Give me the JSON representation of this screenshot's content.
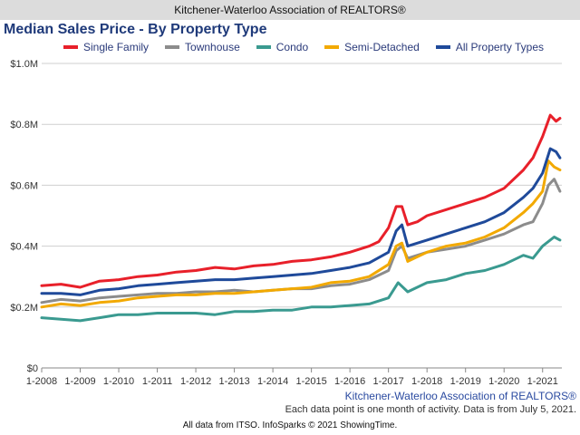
{
  "banner": "Kitchener-Waterloo Association of REALTORS®",
  "footer": {
    "source": "Kitchener-Waterloo Association of REALTORS®",
    "note": "Each data point is one month of activity. Data is from July 5, 2021.",
    "credit": "All data from ITSO. InfoSparks © 2021 ShowingTime."
  },
  "chart_data": {
    "type": "line",
    "title": "Median Sales Price - By Property Type",
    "xlabel": "",
    "ylabel": "",
    "xlim": [
      2008.0,
      2021.5
    ],
    "ylim": [
      0,
      1000000
    ],
    "grid": "horizontal",
    "legend_position": "top",
    "x_ticks": [
      "1-2008",
      "1-2009",
      "1-2010",
      "1-2011",
      "1-2012",
      "1-2013",
      "1-2014",
      "1-2015",
      "1-2016",
      "1-2017",
      "1-2018",
      "1-2019",
      "1-2020",
      "1-2021"
    ],
    "y_ticks": [
      {
        "value": 0,
        "label": "$0"
      },
      {
        "value": 200000,
        "label": "$0.2M"
      },
      {
        "value": 400000,
        "label": "$0.4M"
      },
      {
        "value": 600000,
        "label": "$0.6M"
      },
      {
        "value": 800000,
        "label": "$0.8M"
      },
      {
        "value": 1000000,
        "label": "$1.0M"
      }
    ],
    "series": [
      {
        "name": "Single Family",
        "color": "#e8202a",
        "points": [
          [
            2008.0,
            270000
          ],
          [
            2008.5,
            275000
          ],
          [
            2009.0,
            265000
          ],
          [
            2009.5,
            285000
          ],
          [
            2010.0,
            290000
          ],
          [
            2010.5,
            300000
          ],
          [
            2011.0,
            305000
          ],
          [
            2011.5,
            315000
          ],
          [
            2012.0,
            320000
          ],
          [
            2012.5,
            330000
          ],
          [
            2013.0,
            325000
          ],
          [
            2013.5,
            335000
          ],
          [
            2014.0,
            340000
          ],
          [
            2014.5,
            350000
          ],
          [
            2015.0,
            355000
          ],
          [
            2015.5,
            365000
          ],
          [
            2016.0,
            380000
          ],
          [
            2016.5,
            400000
          ],
          [
            2016.75,
            415000
          ],
          [
            2017.0,
            460000
          ],
          [
            2017.2,
            530000
          ],
          [
            2017.35,
            530000
          ],
          [
            2017.5,
            470000
          ],
          [
            2017.75,
            480000
          ],
          [
            2018.0,
            500000
          ],
          [
            2018.5,
            520000
          ],
          [
            2019.0,
            540000
          ],
          [
            2019.5,
            560000
          ],
          [
            2020.0,
            590000
          ],
          [
            2020.5,
            650000
          ],
          [
            2020.75,
            690000
          ],
          [
            2021.0,
            760000
          ],
          [
            2021.2,
            830000
          ],
          [
            2021.35,
            810000
          ],
          [
            2021.45,
            820000
          ]
        ]
      },
      {
        "name": "Townhouse",
        "color": "#8c8c8c",
        "points": [
          [
            2008.0,
            215000
          ],
          [
            2008.5,
            225000
          ],
          [
            2009.0,
            220000
          ],
          [
            2009.5,
            230000
          ],
          [
            2010.0,
            235000
          ],
          [
            2010.5,
            240000
          ],
          [
            2011.0,
            245000
          ],
          [
            2011.5,
            245000
          ],
          [
            2012.0,
            250000
          ],
          [
            2012.5,
            250000
          ],
          [
            2013.0,
            255000
          ],
          [
            2013.5,
            250000
          ],
          [
            2014.0,
            255000
          ],
          [
            2014.5,
            260000
          ],
          [
            2015.0,
            260000
          ],
          [
            2015.5,
            270000
          ],
          [
            2016.0,
            275000
          ],
          [
            2016.5,
            290000
          ],
          [
            2017.0,
            320000
          ],
          [
            2017.2,
            385000
          ],
          [
            2017.35,
            400000
          ],
          [
            2017.5,
            360000
          ],
          [
            2018.0,
            380000
          ],
          [
            2018.5,
            390000
          ],
          [
            2019.0,
            400000
          ],
          [
            2019.5,
            420000
          ],
          [
            2020.0,
            440000
          ],
          [
            2020.5,
            470000
          ],
          [
            2020.75,
            480000
          ],
          [
            2021.0,
            540000
          ],
          [
            2021.15,
            600000
          ],
          [
            2021.3,
            620000
          ],
          [
            2021.45,
            580000
          ]
        ]
      },
      {
        "name": "Condo",
        "color": "#3a9a90",
        "points": [
          [
            2008.0,
            165000
          ],
          [
            2008.5,
            160000
          ],
          [
            2009.0,
            155000
          ],
          [
            2009.5,
            165000
          ],
          [
            2010.0,
            175000
          ],
          [
            2010.5,
            175000
          ],
          [
            2011.0,
            180000
          ],
          [
            2011.5,
            180000
          ],
          [
            2012.0,
            180000
          ],
          [
            2012.5,
            175000
          ],
          [
            2013.0,
            185000
          ],
          [
            2013.5,
            185000
          ],
          [
            2014.0,
            190000
          ],
          [
            2014.5,
            190000
          ],
          [
            2015.0,
            200000
          ],
          [
            2015.5,
            200000
          ],
          [
            2016.0,
            205000
          ],
          [
            2016.5,
            210000
          ],
          [
            2017.0,
            230000
          ],
          [
            2017.25,
            280000
          ],
          [
            2017.5,
            250000
          ],
          [
            2018.0,
            280000
          ],
          [
            2018.5,
            290000
          ],
          [
            2019.0,
            310000
          ],
          [
            2019.5,
            320000
          ],
          [
            2020.0,
            340000
          ],
          [
            2020.5,
            370000
          ],
          [
            2020.75,
            360000
          ],
          [
            2021.0,
            400000
          ],
          [
            2021.3,
            430000
          ],
          [
            2021.45,
            420000
          ]
        ]
      },
      {
        "name": "Semi-Detached",
        "color": "#f2a900",
        "points": [
          [
            2008.0,
            200000
          ],
          [
            2008.5,
            210000
          ],
          [
            2009.0,
            205000
          ],
          [
            2009.5,
            215000
          ],
          [
            2010.0,
            220000
          ],
          [
            2010.5,
            230000
          ],
          [
            2011.0,
            235000
          ],
          [
            2011.5,
            240000
          ],
          [
            2012.0,
            240000
          ],
          [
            2012.5,
            245000
          ],
          [
            2013.0,
            245000
          ],
          [
            2013.5,
            250000
          ],
          [
            2014.0,
            255000
          ],
          [
            2014.5,
            260000
          ],
          [
            2015.0,
            265000
          ],
          [
            2015.5,
            280000
          ],
          [
            2016.0,
            285000
          ],
          [
            2016.5,
            300000
          ],
          [
            2017.0,
            340000
          ],
          [
            2017.2,
            400000
          ],
          [
            2017.35,
            410000
          ],
          [
            2017.5,
            350000
          ],
          [
            2018.0,
            380000
          ],
          [
            2018.5,
            400000
          ],
          [
            2019.0,
            410000
          ],
          [
            2019.5,
            430000
          ],
          [
            2020.0,
            460000
          ],
          [
            2020.5,
            510000
          ],
          [
            2020.75,
            540000
          ],
          [
            2021.0,
            580000
          ],
          [
            2021.15,
            680000
          ],
          [
            2021.3,
            660000
          ],
          [
            2021.45,
            650000
          ]
        ]
      },
      {
        "name": "All Property Types",
        "color": "#1f4a9a",
        "points": [
          [
            2008.0,
            245000
          ],
          [
            2008.5,
            245000
          ],
          [
            2009.0,
            240000
          ],
          [
            2009.5,
            255000
          ],
          [
            2010.0,
            260000
          ],
          [
            2010.5,
            270000
          ],
          [
            2011.0,
            275000
          ],
          [
            2011.5,
            280000
          ],
          [
            2012.0,
            285000
          ],
          [
            2012.5,
            290000
          ],
          [
            2013.0,
            290000
          ],
          [
            2013.5,
            295000
          ],
          [
            2014.0,
            300000
          ],
          [
            2014.5,
            305000
          ],
          [
            2015.0,
            310000
          ],
          [
            2015.5,
            320000
          ],
          [
            2016.0,
            330000
          ],
          [
            2016.5,
            345000
          ],
          [
            2017.0,
            380000
          ],
          [
            2017.2,
            450000
          ],
          [
            2017.35,
            470000
          ],
          [
            2017.5,
            400000
          ],
          [
            2018.0,
            420000
          ],
          [
            2018.5,
            440000
          ],
          [
            2019.0,
            460000
          ],
          [
            2019.5,
            480000
          ],
          [
            2020.0,
            510000
          ],
          [
            2020.5,
            560000
          ],
          [
            2020.75,
            590000
          ],
          [
            2021.0,
            640000
          ],
          [
            2021.2,
            720000
          ],
          [
            2021.35,
            710000
          ],
          [
            2021.45,
            690000
          ]
        ]
      }
    ]
  }
}
